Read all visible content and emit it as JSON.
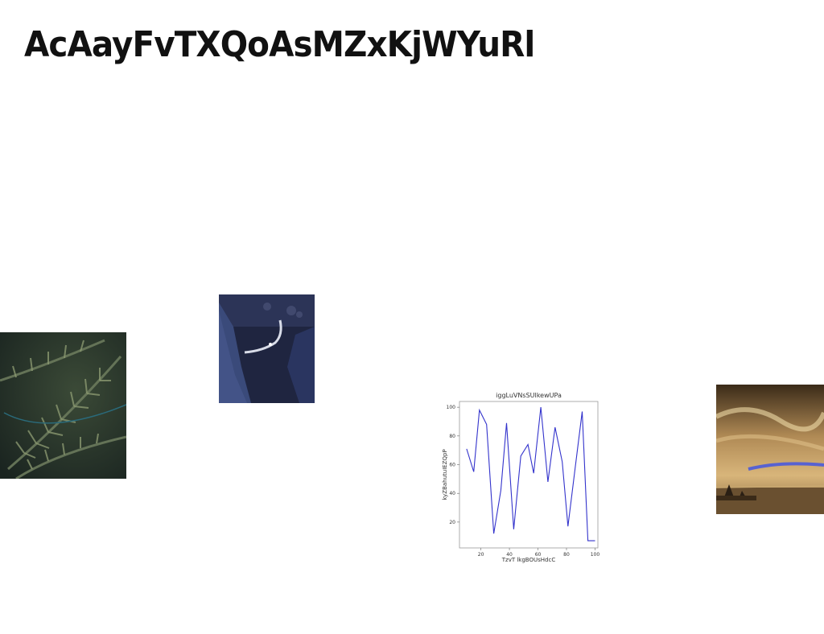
{
  "headline": "AcAayFvTXQoAsMZxKjWYuRl",
  "photos": [
    {
      "name": "fern-photo",
      "subject": "dark green fern fronds"
    },
    {
      "name": "canyon-photo",
      "subject": "blue night canyon with winding path"
    },
    {
      "name": "sunset-photo",
      "subject": "golden sky over beach with rocks"
    }
  ],
  "chart_data": {
    "type": "line",
    "title": "iggLuVNsSUIkewUPa",
    "xlabel": "TzvT lkgBOUsHdcC",
    "ylabel": "kyZBahutuIEZQpP",
    "xlim": [
      5,
      102
    ],
    "ylim": [
      2,
      104
    ],
    "xticks": [
      20,
      40,
      60,
      80,
      100
    ],
    "yticks": [
      20,
      40,
      60,
      80,
      100
    ],
    "grid": false,
    "line_color": "#3333cc",
    "series": [
      {
        "x": [
          10,
          15,
          19,
          24,
          29,
          34,
          38,
          43,
          48,
          53,
          57,
          62,
          67,
          72,
          77,
          81,
          86,
          91,
          95,
          100
        ],
        "values": [
          71,
          55,
          98,
          88,
          12,
          42,
          89,
          15,
          66,
          74,
          54,
          100,
          48,
          86,
          62,
          17,
          57,
          97,
          7,
          7
        ]
      }
    ]
  }
}
